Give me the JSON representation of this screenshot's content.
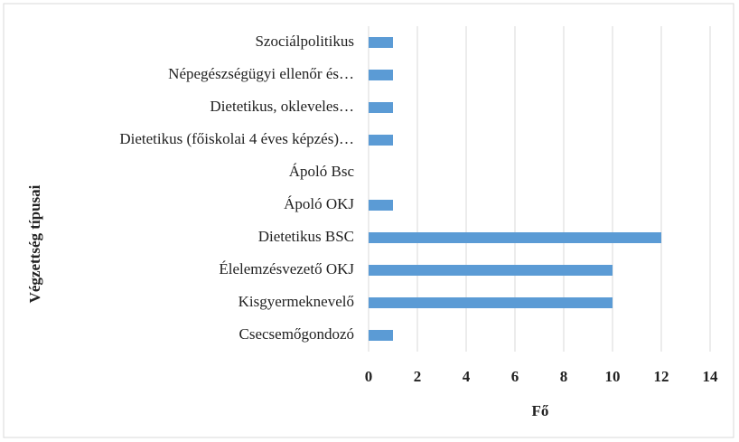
{
  "chart_data": {
    "type": "bar",
    "orientation": "horizontal",
    "categories": [
      "Szociálpolitikus",
      "Népegészségügyi ellenőr és…",
      "Dietetikus, okleveles…",
      "Dietetikus (főiskolai 4 éves képzés)…",
      "Ápoló Bsc",
      "Ápoló OKJ",
      "Dietetikus BSC",
      "Élelemzésvezető OKJ",
      "Kisgyermeknevelő",
      "Csecsemőgondozó"
    ],
    "values": [
      1,
      1,
      1,
      1,
      0,
      1,
      12,
      10,
      10,
      1
    ],
    "color": "#5b9bd5",
    "xlim": [
      0,
      14
    ],
    "xticks": [
      0,
      2,
      4,
      6,
      8,
      10,
      12,
      14
    ],
    "grid": true,
    "x_label": "Fő",
    "y_label": "Végzettség típusai"
  }
}
